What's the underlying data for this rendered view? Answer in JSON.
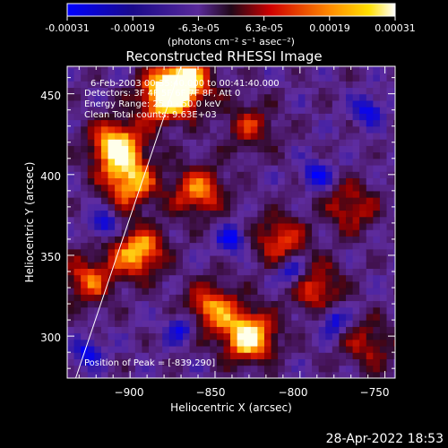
{
  "colorbar": {
    "tick_labels": [
      "-0.00031",
      "-0.00019",
      "-6.3e-05",
      "6.3e-05",
      "0.00019",
      "0.00031"
    ],
    "min": -0.00031,
    "max": 0.00031,
    "unit_label": "(photons cm⁻² s⁻¹ asec⁻²)"
  },
  "chart_data": {
    "type": "heatmap",
    "title": "Reconstructed RHESSI Image",
    "xlabel": "Heliocentric X (arcsec)",
    "ylabel": "Heliocentric Y (arcsec)",
    "xlim": [
      -937,
      -744
    ],
    "ylim": [
      274,
      467
    ],
    "x_ticks": [
      -900,
      -850,
      -800,
      -750
    ],
    "y_ticks": [
      300,
      350,
      400,
      450
    ],
    "x_tick_labels": [
      "−900",
      "−850",
      "−800",
      "−750"
    ],
    "y_tick_labels": [
      "300",
      "350",
      "400",
      "450"
    ],
    "annotations": [
      "6-Feb-2003 00:35:40.000 to 00:41:40.000",
      "Detectors: 3F 4F 5F 6F 7F 8F, Att 0",
      "Energy Range: 25.0 - 50.0 keV",
      "Clean     Total counts: 9.63E+03"
    ],
    "peak_label": "Position of Peak = [-839,290]",
    "limb_x_at_ymin": -932,
    "limb_x_at_ymax": -870,
    "bright_regions": [
      {
        "x": -908,
        "y": 418,
        "level": 1.0
      },
      {
        "x": -900,
        "y": 395,
        "level": 0.8
      },
      {
        "x": -880,
        "y": 448,
        "level": 0.9
      },
      {
        "x": -868,
        "y": 458,
        "level": 0.95
      },
      {
        "x": -895,
        "y": 352,
        "level": 0.85
      },
      {
        "x": -830,
        "y": 300,
        "level": 1.0
      },
      {
        "x": -852,
        "y": 318,
        "level": 0.7
      },
      {
        "x": -860,
        "y": 390,
        "level": 0.7
      },
      {
        "x": -812,
        "y": 360,
        "level": 0.6
      },
      {
        "x": -790,
        "y": 330,
        "level": 0.55
      },
      {
        "x": -770,
        "y": 380,
        "level": 0.5
      },
      {
        "x": -925,
        "y": 335,
        "level": 0.6
      },
      {
        "x": -830,
        "y": 430,
        "level": 0.45
      },
      {
        "x": -760,
        "y": 295,
        "level": 0.45
      }
    ],
    "dark_regions": [
      {
        "x": -915,
        "y": 370
      },
      {
        "x": -805,
        "y": 340
      },
      {
        "x": -790,
        "y": 400
      },
      {
        "x": -870,
        "y": 305
      },
      {
        "x": -760,
        "y": 440
      },
      {
        "x": -840,
        "y": 360
      },
      {
        "x": -925,
        "y": 290
      },
      {
        "x": -780,
        "y": 310
      }
    ]
  },
  "footer": {
    "timestamp": "28-Apr-2022 18:53"
  }
}
